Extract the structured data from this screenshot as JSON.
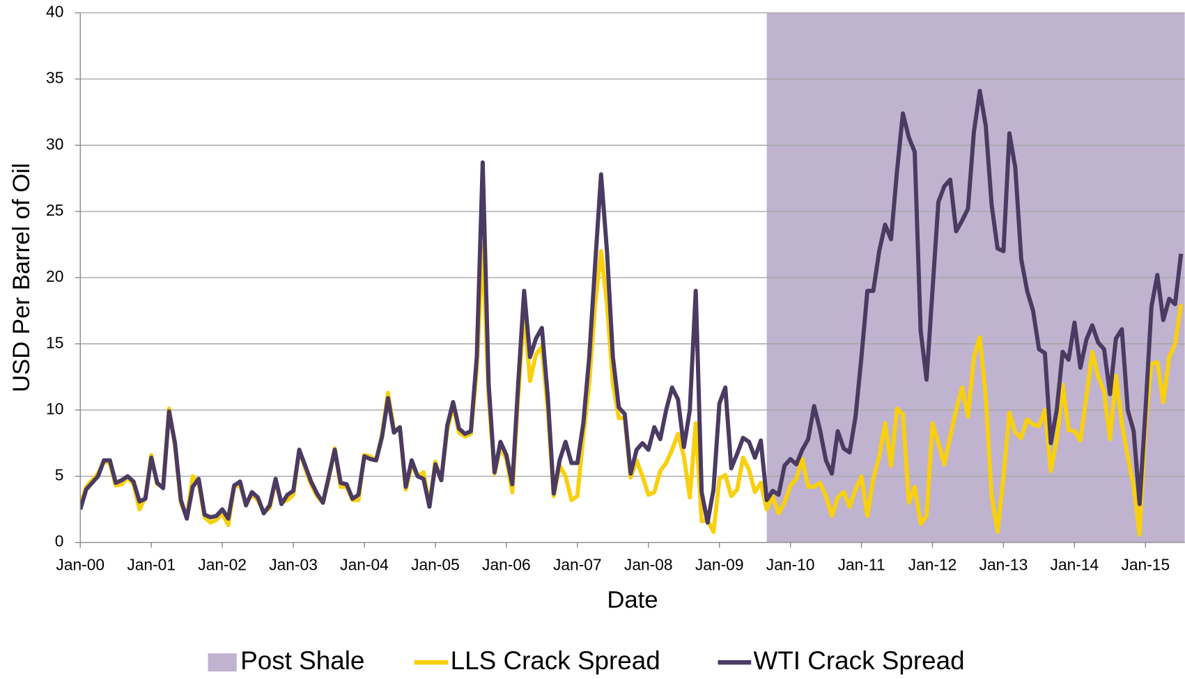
{
  "chart_data": {
    "type": "line",
    "x_label": "Date",
    "y_label": "USD Per Barrel of Oil",
    "categories": [
      "Jan-00",
      null,
      null,
      null,
      null,
      null,
      null,
      null,
      null,
      null,
      null,
      null,
      "Jan-01",
      null,
      null,
      null,
      null,
      null,
      null,
      null,
      null,
      null,
      null,
      null,
      "Jan-02",
      null,
      null,
      null,
      null,
      null,
      null,
      null,
      null,
      null,
      null,
      null,
      "Jan-03",
      null,
      null,
      null,
      null,
      null,
      null,
      null,
      null,
      null,
      null,
      null,
      "Jan-04",
      null,
      null,
      null,
      null,
      null,
      null,
      null,
      null,
      null,
      null,
      null,
      "Jan-05",
      null,
      null,
      null,
      null,
      null,
      null,
      null,
      null,
      null,
      null,
      null,
      "Jan-06",
      null,
      null,
      null,
      null,
      null,
      null,
      null,
      null,
      null,
      null,
      null,
      "Jan-07",
      null,
      null,
      null,
      null,
      null,
      null,
      null,
      null,
      null,
      null,
      null,
      "Jan-08",
      null,
      null,
      null,
      null,
      null,
      null,
      null,
      null,
      null,
      null,
      null,
      "Jan-09",
      null,
      null,
      null,
      null,
      null,
      null,
      null,
      null,
      null,
      null,
      null,
      "Jan-10",
      null,
      null,
      null,
      null,
      null,
      null,
      null,
      null,
      null,
      null,
      null,
      "Jan-11",
      null,
      null,
      null,
      null,
      null,
      null,
      null,
      null,
      null,
      null,
      null,
      "Jan-12",
      null,
      null,
      null,
      null,
      null,
      null,
      null,
      null,
      null,
      null,
      null,
      "Jan-13",
      null,
      null,
      null,
      null,
      null,
      null,
      null,
      null,
      null,
      null,
      null,
      "Jan-14",
      null,
      null,
      null,
      null,
      null,
      null,
      null,
      null,
      null,
      null,
      null,
      "Jan-15",
      null,
      null,
      null,
      null,
      null,
      null
    ],
    "series": [
      {
        "name": "Post Shale",
        "type": "area",
        "color": "#bfb3cf",
        "values": [
          null,
          null,
          null,
          null,
          null,
          null,
          null,
          null,
          null,
          null,
          null,
          null,
          null,
          null,
          null,
          null,
          null,
          null,
          null,
          null,
          null,
          null,
          null,
          null,
          null,
          null,
          null,
          null,
          null,
          null,
          null,
          null,
          null,
          null,
          null,
          null,
          null,
          null,
          null,
          null,
          null,
          null,
          null,
          null,
          null,
          null,
          null,
          null,
          null,
          null,
          null,
          null,
          null,
          null,
          null,
          null,
          null,
          null,
          null,
          null,
          null,
          null,
          null,
          null,
          null,
          null,
          null,
          null,
          null,
          null,
          null,
          null,
          null,
          null,
          null,
          null,
          null,
          null,
          null,
          null,
          null,
          null,
          null,
          null,
          null,
          null,
          null,
          null,
          null,
          null,
          null,
          null,
          null,
          null,
          null,
          null,
          null,
          null,
          null,
          null,
          null,
          null,
          null,
          null,
          null,
          null,
          null,
          null,
          null,
          null,
          null,
          null,
          null,
          null,
          null,
          null,
          40,
          40,
          40,
          40,
          40,
          40,
          40,
          40,
          40,
          40,
          40,
          40,
          40,
          40,
          40,
          40,
          40,
          40,
          40,
          40,
          40,
          40,
          40,
          40,
          40,
          40,
          40,
          40,
          40,
          40,
          40,
          40,
          40,
          40,
          40,
          40,
          40,
          40,
          40,
          40,
          40,
          40,
          40,
          40,
          40,
          40,
          40,
          40,
          40,
          40,
          40,
          40,
          40,
          40,
          40,
          40,
          40,
          40,
          40,
          40,
          40,
          40,
          40,
          40,
          40,
          40,
          40,
          40,
          40,
          40,
          40
        ]
      },
      {
        "name": "LLS Crack Spread",
        "color": "#f8d00f",
        "values": [
          2.8,
          4.2,
          4.7,
          5.2,
          6.1,
          6,
          4.3,
          4.4,
          4.9,
          4.4,
          2.5,
          3.4,
          6.6,
          4.4,
          4.2,
          10.1,
          7.3,
          3,
          1.9,
          5,
          4.5,
          1.9,
          1.5,
          1.7,
          2.2,
          1.3,
          4.2,
          4.3,
          3,
          3.6,
          3.2,
          2.3,
          2.6,
          4.6,
          3,
          3.2,
          3.6,
          7,
          5.6,
          4.4,
          3.5,
          3,
          4.8,
          7.1,
          4.2,
          4.2,
          3.2,
          3.2,
          6.6,
          6.5,
          6.2,
          8.2,
          11.3,
          8.5,
          8.6,
          4,
          5.9,
          5,
          5.3,
          2.8,
          6.1,
          4.7,
          8.5,
          10.3,
          8.3,
          8,
          8.2,
          13,
          22.5,
          11,
          5.2,
          7.2,
          6.3,
          3.8,
          11,
          17.5,
          12.2,
          14.2,
          14.8,
          10,
          3.5,
          5.8,
          5,
          3.2,
          3.5,
          8,
          12,
          18,
          22,
          18,
          12,
          9.4,
          9.4,
          4.9,
          6.2,
          5,
          3.6,
          3.8,
          5.4,
          6,
          7,
          8.2,
          6.5,
          3.4,
          9,
          1.6,
          1.7,
          0.8,
          4.8,
          5.1,
          3.5,
          4,
          6.4,
          5.5,
          3.8,
          4.5,
          2.5,
          3.5,
          2.2,
          3,
          4.3,
          4.8,
          6.3,
          4.2,
          4.2,
          4.5,
          3.5,
          2,
          3.4,
          3.8,
          2.7,
          4,
          5,
          2,
          4.8,
          6.5,
          9,
          5.8,
          10.1,
          9.7,
          3,
          4.2,
          1.4,
          2,
          9,
          7.5,
          5.9,
          8,
          10,
          11.7,
          9.5,
          14,
          15.5,
          11,
          3.5,
          0.8,
          5,
          9.8,
          8.3,
          7.9,
          9.3,
          8.9,
          8.8,
          10,
          5.4,
          7.8,
          11.9,
          8.5,
          8.4,
          7.7,
          11,
          14.4,
          12.5,
          11.4,
          7.8,
          12.6,
          9,
          6.5,
          4.2,
          0.6,
          9,
          13.5,
          13.6,
          10.6,
          14,
          15,
          18
        ]
      },
      {
        "name": "WTI Crack Spread",
        "color": "#4b3a62",
        "values": [
          2.5,
          4,
          4.5,
          5,
          6.2,
          6.2,
          4.5,
          4.7,
          5,
          4.6,
          3.1,
          3.3,
          6.4,
          4.5,
          4.1,
          9.9,
          7.5,
          3.2,
          1.8,
          4.2,
          4.8,
          2.1,
          1.9,
          2,
          2.5,
          1.8,
          4.3,
          4.6,
          2.8,
          3.8,
          3.4,
          2.2,
          2.8,
          4.8,
          2.9,
          3.6,
          3.9,
          7,
          5.8,
          4.6,
          3.7,
          3,
          5,
          7,
          4.5,
          4.4,
          3.3,
          3.6,
          6.5,
          6.3,
          6.2,
          8,
          10.9,
          8.3,
          8.7,
          4.2,
          6.2,
          5,
          4.8,
          2.7,
          5.9,
          4.7,
          8.8,
          10.6,
          8.6,
          8.2,
          8.4,
          14,
          28.7,
          12,
          5.3,
          7.6,
          6.6,
          4.4,
          12,
          19,
          14,
          15.4,
          16.2,
          11,
          3.7,
          6.2,
          7.6,
          6,
          6,
          9,
          14,
          21,
          27.8,
          22,
          14,
          10.2,
          9.7,
          5.2,
          7,
          7.5,
          7,
          8.7,
          7.8,
          10,
          11.7,
          10.8,
          7.2,
          10,
          19,
          3.8,
          1.5,
          4,
          10.5,
          11.7,
          5.6,
          6.7,
          7.9,
          7.6,
          6.4,
          7.7,
          3.2,
          3.9,
          3.6,
          5.8,
          6.3,
          5.9,
          7,
          7.8,
          10.3,
          8.5,
          6.2,
          5.2,
          8.4,
          7.1,
          6.8,
          9.5,
          14,
          19,
          19,
          22,
          24,
          22.9,
          28,
          32.4,
          30.6,
          29.5,
          16,
          12.3,
          19,
          25.7,
          26.9,
          27.4,
          23.5,
          24.3,
          25.2,
          31,
          34.1,
          31.5,
          25.5,
          22.2,
          22,
          30.9,
          28.3,
          21.4,
          19,
          17.5,
          14.6,
          14.3,
          7.5,
          10,
          14.4,
          13.8,
          16.6,
          13.2,
          15.3,
          16.4,
          15.1,
          14.6,
          11.2,
          15.4,
          16.1,
          10,
          8.4,
          2.9,
          10,
          17.8,
          20.2,
          16.8,
          18.4,
          18,
          21.8
        ]
      }
    ],
    "ylim": [
      0,
      40
    ],
    "yticks": [
      0,
      5,
      10,
      15,
      20,
      25,
      30,
      35,
      40
    ],
    "grid": true,
    "legend": "bottom"
  }
}
